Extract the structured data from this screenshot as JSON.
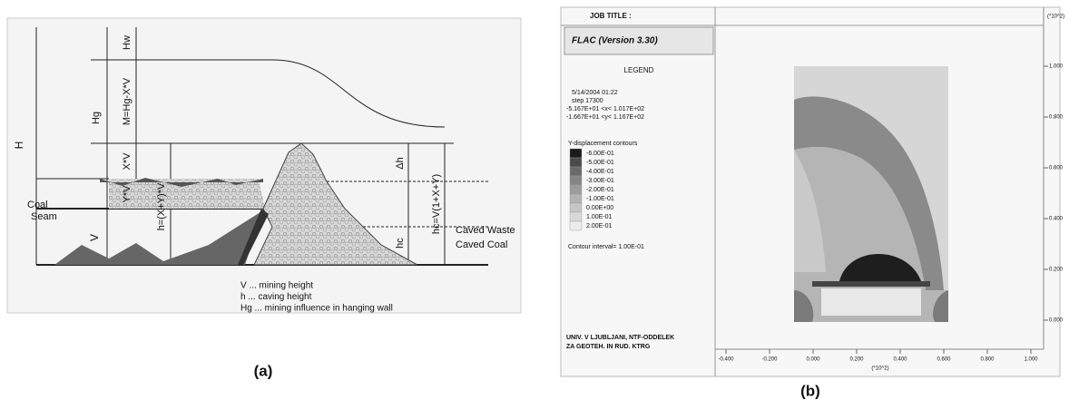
{
  "panel_a": {
    "caption": "(a)",
    "labels": {
      "H": "H",
      "Hw": "Hw",
      "M": "M=Hg-X*V",
      "Hg": "Hg",
      "XV": "X*V",
      "YV": "Y*V",
      "h": "h=(X+Y)*V",
      "dh": "Δh",
      "hc": "hc",
      "hc_eq": "hc=V(1+X+Y)",
      "coal": "Coal",
      "seam": "Seam",
      "caved_waste": "Caved Waste",
      "caved_coal": "Caved Coal",
      "V": "V"
    },
    "legend": [
      "V  ...  mining height",
      "h  ...  caving height",
      "Hg ... mining influence in hanging wall"
    ]
  },
  "panel_b": {
    "caption": "(b)",
    "job_title": "JOB TITLE :",
    "program": "FLAC (Version 3.30)",
    "legend_title": "LEGEND",
    "date": "5/14/2004 01:22",
    "step": "step  17300",
    "xrange": "-5.167E+01 <x< 1.017E+02",
    "yrange": "-1.667E+01 <y< 1.167E+02",
    "contour_title": "Y-displacement contours",
    "contours": [
      "-6.00E-01",
      "-5.00E-01",
      "-4.00E-01",
      "-3.00E-01",
      "-2.00E-01",
      "-1.00E-01",
      "0.00E+00",
      "1.00E-01",
      "2.00E-01"
    ],
    "interval": "Contour interval=  1.00E-01",
    "institution": [
      "UNIV. V LJUBLJANI, NTF-ODDELEK",
      "ZA GEOTEH. IN RUD. KTRG"
    ],
    "unit": "(*10^2)",
    "yticks": [
      "1.000",
      "0.800",
      "0.600",
      "0.400",
      "0.200",
      "0.000"
    ],
    "xticks": [
      "-0.400",
      "-0.200",
      "0.000",
      "0.200",
      "0.400",
      "0.600",
      "0.800",
      "1.000"
    ],
    "xlabel": "(*10^2)"
  }
}
